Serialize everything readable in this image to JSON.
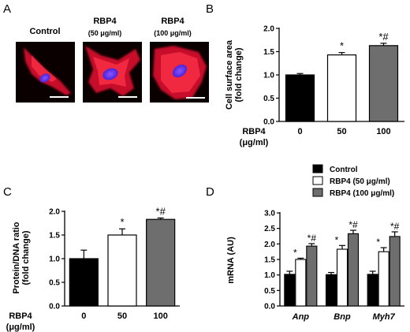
{
  "figure": {
    "panel_labels": [
      "A",
      "B",
      "C",
      "D"
    ],
    "micrographs": [
      {
        "label": "Control",
        "sublabel": ""
      },
      {
        "label": "RBP4",
        "sublabel": "(50 μg/ml)"
      },
      {
        "label": "RBP4",
        "sublabel": "(100 μg/ml)"
      }
    ],
    "colors": {
      "black_bar": "#000000",
      "white_bar": "#ffffff",
      "gray_bar": "#6e6e6e",
      "cell_red": "#e0142a",
      "nucleus_blue": "#6a2cff",
      "micrograph_bg": "#0a0000"
    }
  },
  "chart_data": [
    {
      "id": "B",
      "type": "bar",
      "title": "",
      "ylabel": "Cell surface area (fold change)",
      "ylabel_lines": [
        "Cell surface area",
        "(fold change)"
      ],
      "ylim": [
        0,
        2.0
      ],
      "yticks": [
        "0.0",
        "0.5",
        "1.0",
        "1.5",
        "2.0"
      ],
      "xlabel_lines": [
        "RBP4",
        "(μg/ml)"
      ],
      "categories": [
        "0",
        "50",
        "100"
      ],
      "values": [
        1.0,
        1.43,
        1.63
      ],
      "errors": [
        0.03,
        0.05,
        0.05
      ],
      "annotations": [
        "",
        "*",
        "*#"
      ],
      "bar_colors": [
        "#000000",
        "#ffffff",
        "#6e6e6e"
      ]
    },
    {
      "id": "C",
      "type": "bar",
      "title": "",
      "ylabel": "Protein/DNA ratio (fold change)",
      "ylabel_lines": [
        "Protein/DNA ratio",
        "(fold change)"
      ],
      "ylim": [
        0,
        2.0
      ],
      "yticks": [
        "0.0",
        "0.5",
        "1.0",
        "1.5",
        "2.0"
      ],
      "xlabel_lines": [
        "RBP4",
        "(μg/ml)"
      ],
      "categories": [
        "0",
        "50",
        "100"
      ],
      "values": [
        1.0,
        1.5,
        1.83
      ],
      "errors": [
        0.18,
        0.13,
        0.03
      ],
      "annotations": [
        "",
        "*",
        "*#"
      ],
      "bar_colors": [
        "#000000",
        "#ffffff",
        "#6e6e6e"
      ]
    },
    {
      "id": "D",
      "type": "bar",
      "title": "",
      "ylabel": "mRNA (AU)",
      "ylim": [
        0,
        3.0
      ],
      "yticks": [
        "0.0",
        "0.5",
        "1.0",
        "1.5",
        "2.0",
        "2.5",
        "3.0"
      ],
      "categories": [
        "Anp",
        "Bnp",
        "Myh7"
      ],
      "legend": "top",
      "series": [
        {
          "name": "Control",
          "color": "#000000",
          "values": [
            1.02,
            1.01,
            1.02
          ],
          "errors": [
            0.1,
            0.07,
            0.1
          ],
          "annotations": [
            "",
            "",
            ""
          ]
        },
        {
          "name": "RBP4 (50 μg/ml)",
          "color": "#ffffff",
          "values": [
            1.5,
            1.83,
            1.75
          ],
          "errors": [
            0.04,
            0.12,
            0.13
          ],
          "annotations": [
            "*",
            "*",
            "*"
          ]
        },
        {
          "name": "RBP4 (100 μg/ml)",
          "color": "#6e6e6e",
          "values": [
            1.93,
            2.33,
            2.24
          ],
          "errors": [
            0.08,
            0.11,
            0.15
          ],
          "annotations": [
            "*#",
            "*#",
            "*#"
          ]
        }
      ]
    }
  ]
}
